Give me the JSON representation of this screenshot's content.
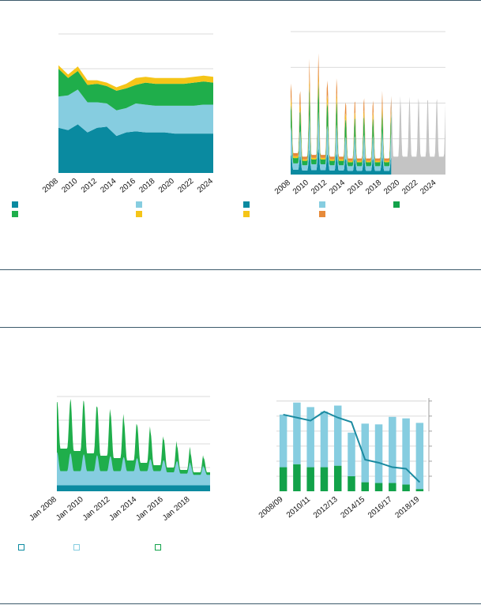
{
  "colors": {
    "teal": "#0a8aa0",
    "light_blue": "#86cde0",
    "green": "#1fae4b",
    "yellow": "#f5c518",
    "orange": "#e68a3a",
    "gray": "#c4c4c4",
    "dark_green": "#12a24a",
    "line": "#1a8aa0",
    "rule": "#3c5a6b"
  },
  "chart_data": [
    {
      "id": "top-left",
      "type": "area",
      "x": [
        2008,
        2009,
        2010,
        2011,
        2012,
        2013,
        2014,
        2015,
        2016,
        2017,
        2018,
        2019,
        2020,
        2021,
        2022,
        2023,
        2024
      ],
      "x_tick_labels": [
        "2008",
        "2010",
        "2012",
        "2014",
        "2016",
        "2018",
        "2020",
        "2022",
        "2024"
      ],
      "series": [
        {
          "color": "teal",
          "values": [
            39,
            37,
            42,
            35,
            39,
            40,
            32,
            35,
            36,
            35,
            35,
            35,
            34,
            34,
            34,
            34,
            34
          ]
        },
        {
          "color": "light_blue",
          "values": [
            27,
            30,
            30,
            26,
            22,
            20,
            22,
            21,
            24,
            24,
            23,
            23,
            24,
            24,
            24,
            25,
            25
          ]
        },
        {
          "color": "green",
          "values": [
            24,
            15,
            16,
            15,
            16,
            15,
            17,
            17,
            16,
            19,
            19,
            19,
            19,
            19,
            20,
            20,
            19
          ]
        },
        {
          "color": "yellow",
          "values": [
            3,
            3,
            4,
            4,
            3,
            3,
            3,
            4,
            6,
            5,
            5,
            5,
            5,
            5,
            5,
            5,
            5
          ]
        }
      ],
      "ylim": [
        0,
        120
      ],
      "y_gridlines": [
        90
      ],
      "grid": true
    },
    {
      "id": "top-right",
      "type": "area",
      "x_range": [
        2008,
        2025
      ],
      "projection_start": 2019,
      "x_tick_labels": [
        "2008",
        "2010",
        "2012",
        "2014",
        "2016",
        "2018",
        "2020",
        "2022",
        "2024"
      ],
      "seasonal_peaks": [
        52,
        47,
        65,
        68,
        53,
        55,
        42,
        43,
        44,
        42,
        47,
        44,
        44,
        44,
        44,
        44,
        44
      ],
      "seasonal_troughs": [
        12,
        10,
        11,
        11,
        10,
        10,
        9,
        9,
        9,
        9,
        9,
        10,
        10,
        10,
        10,
        10,
        10
      ],
      "stack_shares": {
        "teal": 0.22,
        "light_blue": 0.3,
        "green": 0.25,
        "yellow": 0.08,
        "orange": 0.15
      },
      "ylim": [
        0,
        80
      ],
      "y_gridlines": [
        20,
        40,
        60,
        80
      ],
      "grid": true
    },
    {
      "id": "bottom-left",
      "type": "area",
      "x_range": [
        2008,
        2019.5
      ],
      "x_tick_labels": [
        "Jan 2008",
        "Jan 2010",
        "Jan 2012",
        "Jan 2014",
        "Jan 2016",
        "Jan 2018"
      ],
      "seasonal_peaks": [
        38,
        39,
        38,
        36,
        33,
        30,
        28,
        25,
        22,
        19,
        16,
        14
      ],
      "seasonal_troughs": [
        18,
        17,
        16,
        15,
        14,
        13,
        12,
        11,
        10,
        9,
        8,
        8
      ],
      "base_teal": 2.5,
      "ylim": [
        0,
        40
      ],
      "y_gridlines": [
        10,
        20,
        30,
        40
      ],
      "grid": true
    },
    {
      "id": "bottom-right",
      "type": "bar",
      "categories": [
        "2008/09",
        "2009/10",
        "2010/11",
        "2011/12",
        "2012/13",
        "2013/14",
        "2014/15",
        "2015/16",
        "2016/17",
        "2017/18",
        "2018/19"
      ],
      "x_tick_labels": [
        "2008/09",
        "2010/11",
        "2012/13",
        "2014/15",
        "2016/17",
        "2018/19"
      ],
      "series": [
        {
          "color": "dark_green",
          "values": [
            16,
            18,
            16,
            16,
            17,
            10,
            6,
            5.5,
            5.5,
            4.5,
            1.5
          ]
        },
        {
          "color": "light_blue",
          "values": [
            35,
            41,
            40,
            37,
            40,
            29,
            39,
            39,
            44,
            44,
            44
          ]
        }
      ],
      "line": {
        "color": "line",
        "values": [
          51,
          49,
          47,
          53,
          49,
          46,
          21,
          19,
          16,
          15,
          6
        ]
      },
      "ylim": [
        0,
        62
      ],
      "y_gridlines": [
        10,
        20,
        30,
        40,
        50,
        60
      ],
      "grid": true
    }
  ],
  "legend_top": [
    {
      "color": "teal",
      "label": ""
    },
    {
      "color": "light_blue",
      "label": ""
    },
    {
      "color": "teal",
      "label": ""
    },
    {
      "color": "light_blue",
      "label": ""
    },
    {
      "color": "dark_green",
      "label": ""
    },
    {
      "color": "green",
      "label": ""
    },
    {
      "color": "yellow",
      "label": ""
    },
    {
      "color": "yellow",
      "label": ""
    },
    {
      "color": "orange",
      "label": ""
    }
  ],
  "legend_bottom": [
    {
      "color": "teal",
      "label": ""
    },
    {
      "color": "light_blue",
      "label": ""
    },
    {
      "color": "dark_green",
      "label": ""
    }
  ]
}
